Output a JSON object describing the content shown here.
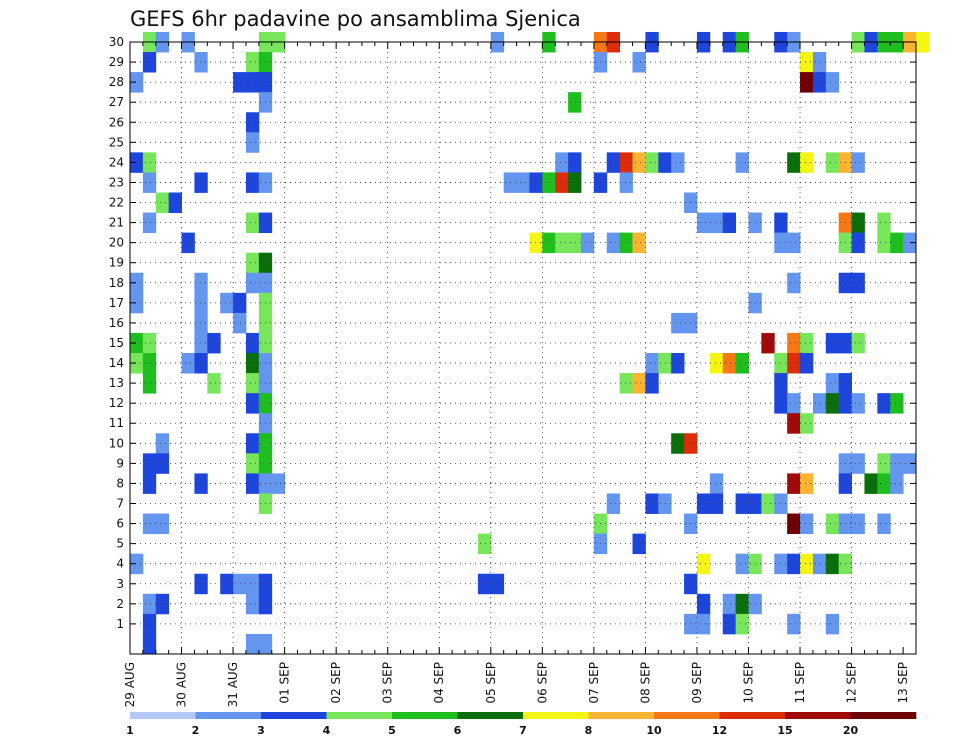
{
  "chart_data": {
    "type": "heatmap",
    "title": "GEFS 6hr padavine po ansamblima Sjenica",
    "xlabel": "",
    "ylabel": "",
    "x_tick_labels": [
      "29 AUG",
      "30 AUG",
      "31 AUG",
      "01 SEP",
      "02 SEP",
      "03 SEP",
      "04 SEP",
      "05 SEP",
      "06 SEP",
      "07 SEP",
      "08 SEP",
      "09 SEP",
      "10 SEP",
      "11 SEP",
      "12 SEP",
      "13 SEP"
    ],
    "y_tick_labels": [
      "1",
      "2",
      "3",
      "4",
      "5",
      "6",
      "7",
      "8",
      "9",
      "10",
      "11",
      "12",
      "13",
      "14",
      "15",
      "16",
      "17",
      "18",
      "19",
      "20",
      "21",
      "22",
      "23",
      "24",
      "25",
      "26",
      "27",
      "28",
      "29",
      "30"
    ],
    "x_unit": "6-hour step from 29 AUG 00 UTC",
    "x_range": [
      0,
      61
    ],
    "y_range": [
      0,
      30
    ],
    "grid": true,
    "legend": {
      "position": "bottom",
      "labels": [
        "1",
        "2",
        "3",
        "4",
        "5",
        "6",
        "7",
        "8",
        "10",
        "12",
        "15",
        "20"
      ],
      "colors": [
        "#b4c8f5",
        "#6496f0",
        "#1e46dc",
        "#78e65a",
        "#1ebe1e",
        "#0a6e0a",
        "#f5f514",
        "#fab432",
        "#f57814",
        "#dc2d0a",
        "#a00a0a",
        "#6e0005"
      ]
    },
    "cells": [
      [
        1,
        30,
        3
      ],
      [
        2,
        30,
        1
      ],
      [
        4,
        30,
        1
      ],
      [
        10,
        30,
        3
      ],
      [
        11,
        30,
        3
      ],
      [
        28,
        30,
        1
      ],
      [
        32,
        30,
        4
      ],
      [
        36,
        30,
        8
      ],
      [
        37,
        30,
        9
      ],
      [
        40,
        30,
        2
      ],
      [
        44,
        30,
        2
      ],
      [
        46,
        30,
        2
      ],
      [
        47,
        30,
        4
      ],
      [
        50,
        30,
        2
      ],
      [
        51,
        30,
        1
      ],
      [
        56,
        30,
        3
      ],
      [
        57,
        30,
        2
      ],
      [
        58,
        30,
        4
      ],
      [
        59,
        30,
        4
      ],
      [
        60,
        30,
        7
      ],
      [
        61,
        30,
        6
      ],
      [
        1,
        29,
        2
      ],
      [
        5,
        29,
        1
      ],
      [
        9,
        29,
        3
      ],
      [
        10,
        29,
        4
      ],
      [
        36,
        29,
        1
      ],
      [
        39,
        29,
        1
      ],
      [
        52,
        29,
        6
      ],
      [
        53,
        29,
        1
      ],
      [
        0,
        28,
        1
      ],
      [
        8,
        28,
        2
      ],
      [
        9,
        28,
        2
      ],
      [
        10,
        28,
        2
      ],
      [
        52,
        28,
        11
      ],
      [
        53,
        28,
        2
      ],
      [
        54,
        28,
        1
      ],
      [
        10,
        27,
        1
      ],
      [
        34,
        27,
        4
      ],
      [
        9,
        26,
        2
      ],
      [
        9,
        25,
        1
      ],
      [
        0,
        24,
        2
      ],
      [
        1,
        24,
        3
      ],
      [
        33,
        24,
        1
      ],
      [
        34,
        24,
        2
      ],
      [
        37,
        24,
        2
      ],
      [
        38,
        24,
        9
      ],
      [
        39,
        24,
        7
      ],
      [
        40,
        24,
        3
      ],
      [
        41,
        24,
        2
      ],
      [
        42,
        24,
        1
      ],
      [
        47,
        24,
        1
      ],
      [
        51,
        24,
        5
      ],
      [
        52,
        24,
        6
      ],
      [
        54,
        24,
        3
      ],
      [
        55,
        24,
        7
      ],
      [
        56,
        24,
        1
      ],
      [
        1,
        23,
        1
      ],
      [
        5,
        23,
        2
      ],
      [
        9,
        23,
        2
      ],
      [
        10,
        23,
        1
      ],
      [
        29,
        23,
        1
      ],
      [
        30,
        23,
        1
      ],
      [
        31,
        23,
        2
      ],
      [
        32,
        23,
        4
      ],
      [
        33,
        23,
        9
      ],
      [
        34,
        23,
        5
      ],
      [
        36,
        23,
        2
      ],
      [
        38,
        23,
        1
      ],
      [
        2,
        22,
        3
      ],
      [
        3,
        22,
        2
      ],
      [
        43,
        22,
        1
      ],
      [
        1,
        21,
        1
      ],
      [
        9,
        21,
        3
      ],
      [
        10,
        21,
        2
      ],
      [
        44,
        21,
        1
      ],
      [
        45,
        21,
        1
      ],
      [
        46,
        21,
        2
      ],
      [
        48,
        21,
        1
      ],
      [
        50,
        21,
        2
      ],
      [
        55,
        21,
        8
      ],
      [
        56,
        21,
        5
      ],
      [
        58,
        21,
        3
      ],
      [
        4,
        20,
        2
      ],
      [
        31,
        20,
        6
      ],
      [
        32,
        20,
        4
      ],
      [
        33,
        20,
        3
      ],
      [
        34,
        20,
        3
      ],
      [
        35,
        20,
        1
      ],
      [
        37,
        20,
        1
      ],
      [
        38,
        20,
        4
      ],
      [
        39,
        20,
        7
      ],
      [
        50,
        20,
        1
      ],
      [
        51,
        20,
        1
      ],
      [
        55,
        20,
        3
      ],
      [
        56,
        20,
        2
      ],
      [
        58,
        20,
        3
      ],
      [
        59,
        20,
        4
      ],
      [
        60,
        20,
        1
      ],
      [
        9,
        19,
        3
      ],
      [
        10,
        19,
        5
      ],
      [
        0,
        18,
        1
      ],
      [
        5,
        18,
        1
      ],
      [
        9,
        18,
        1
      ],
      [
        10,
        18,
        1
      ],
      [
        51,
        18,
        1
      ],
      [
        55,
        18,
        2
      ],
      [
        56,
        18,
        2
      ],
      [
        0,
        17,
        1
      ],
      [
        5,
        17,
        1
      ],
      [
        7,
        17,
        1
      ],
      [
        8,
        17,
        2
      ],
      [
        10,
        17,
        3
      ],
      [
        48,
        17,
        1
      ],
      [
        5,
        16,
        1
      ],
      [
        8,
        16,
        1
      ],
      [
        10,
        16,
        3
      ],
      [
        42,
        16,
        1
      ],
      [
        43,
        16,
        1
      ],
      [
        0,
        15,
        4
      ],
      [
        1,
        15,
        3
      ],
      [
        5,
        15,
        1
      ],
      [
        6,
        15,
        2
      ],
      [
        9,
        15,
        2
      ],
      [
        10,
        15,
        3
      ],
      [
        49,
        15,
        10
      ],
      [
        51,
        15,
        8
      ],
      [
        52,
        15,
        3
      ],
      [
        54,
        15,
        2
      ],
      [
        55,
        15,
        2
      ],
      [
        56,
        15,
        3
      ],
      [
        0,
        14,
        3
      ],
      [
        1,
        14,
        4
      ],
      [
        4,
        14,
        1
      ],
      [
        5,
        14,
        2
      ],
      [
        9,
        14,
        5
      ],
      [
        10,
        14,
        1
      ],
      [
        40,
        14,
        1
      ],
      [
        41,
        14,
        3
      ],
      [
        42,
        14,
        2
      ],
      [
        45,
        14,
        6
      ],
      [
        46,
        14,
        8
      ],
      [
        47,
        14,
        4
      ],
      [
        50,
        14,
        3
      ],
      [
        51,
        14,
        9
      ],
      [
        52,
        14,
        2
      ],
      [
        1,
        13,
        4
      ],
      [
        6,
        13,
        3
      ],
      [
        9,
        13,
        3
      ],
      [
        10,
        13,
        1
      ],
      [
        38,
        13,
        3
      ],
      [
        39,
        13,
        7
      ],
      [
        40,
        13,
        2
      ],
      [
        50,
        13,
        2
      ],
      [
        54,
        13,
        1
      ],
      [
        55,
        13,
        2
      ],
      [
        9,
        12,
        2
      ],
      [
        10,
        12,
        4
      ],
      [
        50,
        12,
        2
      ],
      [
        51,
        12,
        1
      ],
      [
        53,
        12,
        1
      ],
      [
        54,
        12,
        5
      ],
      [
        55,
        12,
        2
      ],
      [
        56,
        12,
        1
      ],
      [
        58,
        12,
        2
      ],
      [
        59,
        12,
        4
      ],
      [
        10,
        11,
        1
      ],
      [
        51,
        11,
        10
      ],
      [
        52,
        11,
        3
      ],
      [
        2,
        10,
        1
      ],
      [
        9,
        10,
        2
      ],
      [
        10,
        10,
        4
      ],
      [
        42,
        10,
        5
      ],
      [
        43,
        10,
        9
      ],
      [
        1,
        9,
        2
      ],
      [
        2,
        9,
        2
      ],
      [
        9,
        9,
        3
      ],
      [
        10,
        9,
        4
      ],
      [
        55,
        9,
        1
      ],
      [
        56,
        9,
        1
      ],
      [
        58,
        9,
        3
      ],
      [
        59,
        9,
        1
      ],
      [
        60,
        9,
        1
      ],
      [
        1,
        8,
        2
      ],
      [
        5,
        8,
        2
      ],
      [
        9,
        8,
        2
      ],
      [
        10,
        8,
        1
      ],
      [
        11,
        8,
        1
      ],
      [
        45,
        8,
        1
      ],
      [
        51,
        8,
        10
      ],
      [
        52,
        8,
        7
      ],
      [
        55,
        8,
        2
      ],
      [
        57,
        8,
        5
      ],
      [
        58,
        8,
        4
      ],
      [
        59,
        8,
        1
      ],
      [
        10,
        7,
        3
      ],
      [
        37,
        7,
        1
      ],
      [
        40,
        7,
        2
      ],
      [
        41,
        7,
        1
      ],
      [
        44,
        7,
        2
      ],
      [
        45,
        7,
        2
      ],
      [
        47,
        7,
        2
      ],
      [
        48,
        7,
        2
      ],
      [
        49,
        7,
        3
      ],
      [
        50,
        7,
        1
      ],
      [
        1,
        6,
        1
      ],
      [
        2,
        6,
        1
      ],
      [
        36,
        6,
        3
      ],
      [
        43,
        6,
        1
      ],
      [
        51,
        6,
        11
      ],
      [
        52,
        6,
        1
      ],
      [
        54,
        6,
        3
      ],
      [
        55,
        6,
        1
      ],
      [
        56,
        6,
        1
      ],
      [
        58,
        6,
        1
      ],
      [
        27,
        5,
        3
      ],
      [
        36,
        5,
        1
      ],
      [
        39,
        5,
        2
      ],
      [
        0,
        4,
        1
      ],
      [
        44,
        4,
        6
      ],
      [
        47,
        4,
        1
      ],
      [
        48,
        4,
        3
      ],
      [
        50,
        4,
        1
      ],
      [
        51,
        4,
        2
      ],
      [
        52,
        4,
        6
      ],
      [
        53,
        4,
        1
      ],
      [
        54,
        4,
        5
      ],
      [
        55,
        4,
        3
      ],
      [
        5,
        3,
        2
      ],
      [
        7,
        3,
        2
      ],
      [
        8,
        3,
        1
      ],
      [
        9,
        3,
        1
      ],
      [
        10,
        3,
        2
      ],
      [
        27,
        3,
        2
      ],
      [
        28,
        3,
        2
      ],
      [
        43,
        3,
        2
      ],
      [
        1,
        2,
        1
      ],
      [
        2,
        2,
        2
      ],
      [
        9,
        2,
        1
      ],
      [
        10,
        2,
        2
      ],
      [
        44,
        2,
        2
      ],
      [
        46,
        2,
        1
      ],
      [
        47,
        2,
        5
      ],
      [
        48,
        2,
        1
      ],
      [
        1,
        1,
        2
      ],
      [
        43,
        1,
        1
      ],
      [
        44,
        1,
        1
      ],
      [
        46,
        1,
        2
      ],
      [
        47,
        1,
        3
      ],
      [
        51,
        1,
        1
      ],
      [
        54,
        1,
        1
      ],
      [
        1,
        0,
        2
      ],
      [
        9,
        0,
        1
      ],
      [
        10,
        0,
        1
      ]
    ]
  }
}
